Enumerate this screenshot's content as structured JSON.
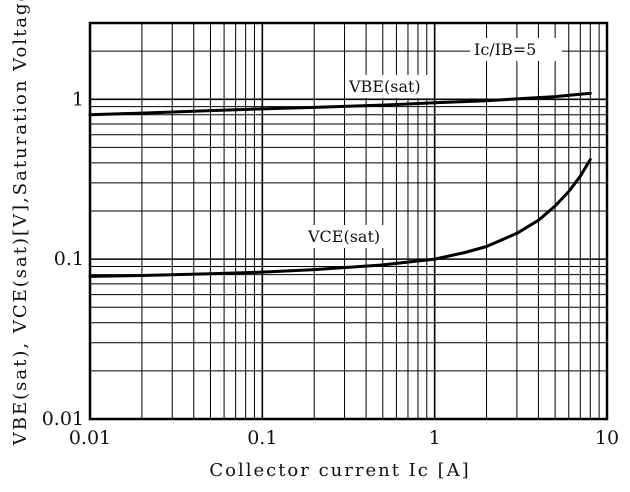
{
  "chart_data": {
    "type": "line",
    "title": "",
    "xlabel": "Collector current Ic [A]",
    "ylabel": "VBE(sat), VCE(sat)[V],Saturation Voltage",
    "xscale": "log",
    "yscale": "log",
    "xlim": [
      0.01,
      10
    ],
    "ylim": [
      0.01,
      3
    ],
    "grid": true,
    "x_ticks": [
      "0.01",
      "0.1",
      "1",
      "10"
    ],
    "y_ticks": [
      "0.01",
      "0.1",
      "1"
    ],
    "condition_label": "Ic/IB=5",
    "series": [
      {
        "name": "VBE(sat)",
        "x": [
          0.01,
          0.02,
          0.05,
          0.1,
          0.2,
          0.5,
          1,
          2,
          5,
          8
        ],
        "y": [
          0.8,
          0.82,
          0.85,
          0.87,
          0.89,
          0.92,
          0.95,
          0.98,
          1.04,
          1.09
        ]
      },
      {
        "name": "VCE(sat)",
        "x": [
          0.01,
          0.02,
          0.05,
          0.1,
          0.2,
          0.5,
          1,
          1.5,
          2,
          3,
          4,
          5,
          6,
          7,
          8
        ],
        "y": [
          0.078,
          0.079,
          0.081,
          0.083,
          0.086,
          0.092,
          0.1,
          0.11,
          0.12,
          0.145,
          0.175,
          0.215,
          0.265,
          0.33,
          0.42
        ]
      }
    ]
  }
}
